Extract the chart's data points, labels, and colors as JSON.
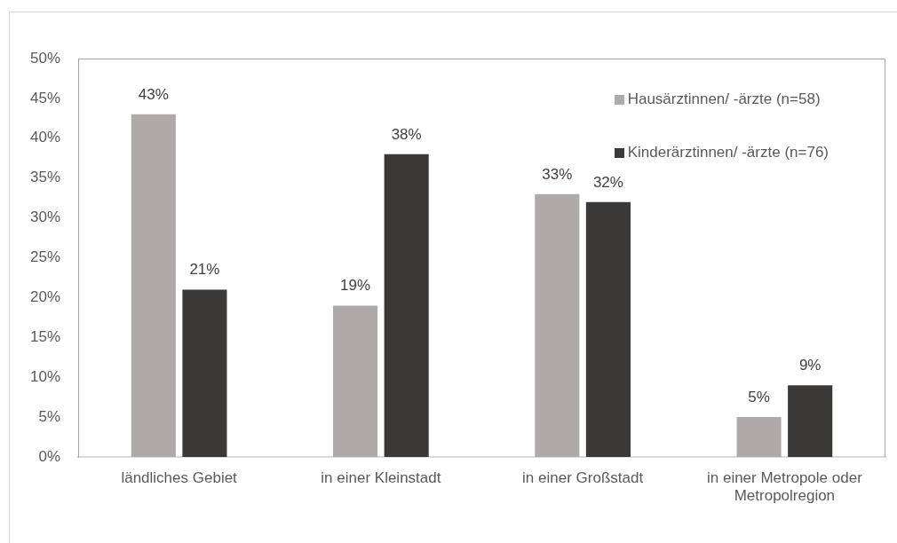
{
  "chart_data": {
    "type": "bar",
    "categories": [
      "ländliches Gebiet",
      "in einer Kleinstadt",
      "in einer Großstadt",
      "in einer Metropole oder Metropolregion"
    ],
    "series": [
      {
        "name": "Hausärztinnen/ -ärzte (n=58)",
        "color": "#aeaaaa",
        "values": [
          43,
          19,
          33,
          5
        ],
        "value_labels": [
          "43%",
          "19%",
          "33%",
          "5%"
        ]
      },
      {
        "name": "Kinderärztinnen/ -ärzte (n=76)",
        "color": "#3b3838",
        "values": [
          21,
          38,
          32,
          9
        ],
        "value_labels": [
          "21%",
          "38%",
          "32%",
          "9%"
        ]
      }
    ],
    "ylim": [
      0,
      50
    ],
    "yticks": [
      {
        "value": 0,
        "label": "0%"
      },
      {
        "value": 5,
        "label": "5%"
      },
      {
        "value": 10,
        "label": "10%"
      },
      {
        "value": 15,
        "label": "15%"
      },
      {
        "value": 20,
        "label": "20%"
      },
      {
        "value": 25,
        "label": "25%"
      },
      {
        "value": 30,
        "label": "30%"
      },
      {
        "value": 35,
        "label": "35%"
      },
      {
        "value": 40,
        "label": "40%"
      },
      {
        "value": 45,
        "label": "45%"
      },
      {
        "value": 50,
        "label": "50%"
      }
    ],
    "grid": false,
    "legend": "top right"
  }
}
